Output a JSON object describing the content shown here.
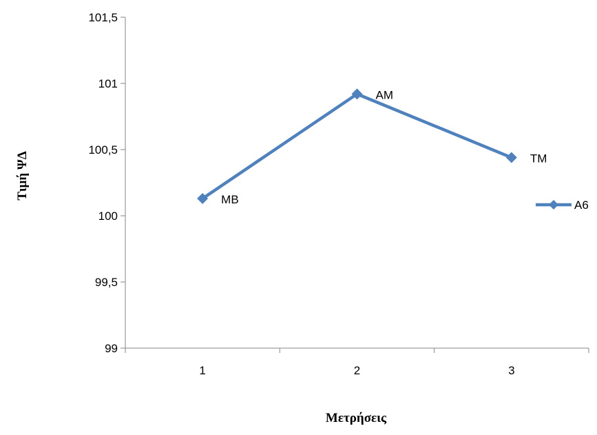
{
  "chart_data": {
    "type": "line",
    "categories": [
      "1",
      "2",
      "3"
    ],
    "series": [
      {
        "name": "A6",
        "values": [
          100.13,
          100.92,
          100.44
        ],
        "point_labels": [
          "MB",
          "AM",
          "TM"
        ]
      }
    ],
    "xlabel": "Μετρήσεις",
    "ylabel": "Τιμή ΨΔ",
    "ylim": [
      99,
      101.5
    ],
    "yticks": [
      "99",
      "99,5",
      "100",
      "100,5",
      "101",
      "101,5"
    ],
    "series_color": "#4F81BD",
    "grid": false,
    "legend_position": "right"
  }
}
